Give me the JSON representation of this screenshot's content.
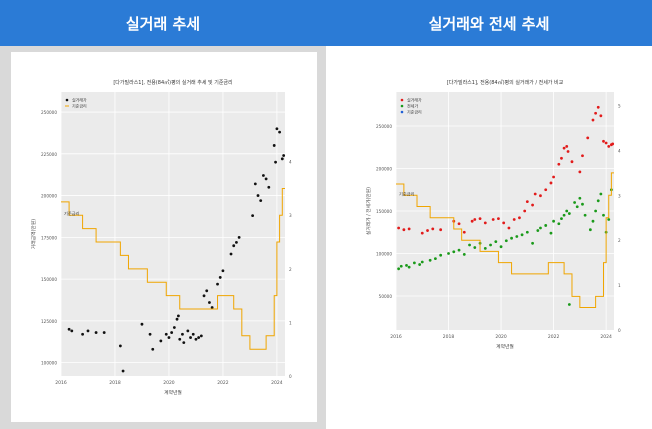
{
  "left_panel": {
    "header": "실거래 추세"
  },
  "right_panel": {
    "header": "실거래와 전세 추세"
  },
  "chart_data": [
    {
      "type": "scatter",
      "title": "[다가빌라스1], 전용(84㎡)평의 실거래 추세 및 기준금리",
      "xlabel": "계약년월",
      "ylabel": "거래금액(만원)",
      "y2label": "",
      "legend": [
        "실거래가",
        "기준금리"
      ],
      "legend_position": "top-left",
      "annotation": "기준금리",
      "colors": {
        "scatter": "#111111",
        "line": "#f0a500"
      },
      "x_ticks": [
        "2016",
        "2018",
        "2020",
        "2022",
        "2024"
      ],
      "y_ticks": [
        100000,
        125000,
        150000,
        175000,
        200000,
        225000,
        250000
      ],
      "y2_ticks": [
        0,
        1,
        2,
        3,
        4
      ],
      "xlim": [
        2016.0,
        2024.3
      ],
      "ylim": [
        92000,
        262000
      ],
      "y2lim": [
        0,
        5.3
      ],
      "series": [
        {
          "name": "실거래가",
          "points": [
            [
              2016.3,
              120000
            ],
            [
              2016.4,
              119000
            ],
            [
              2016.8,
              117000
            ],
            [
              2017.0,
              119000
            ],
            [
              2017.3,
              118000
            ],
            [
              2017.6,
              118000
            ],
            [
              2018.2,
              110000
            ],
            [
              2018.3,
              95000
            ],
            [
              2019.0,
              123000
            ],
            [
              2019.3,
              117000
            ],
            [
              2019.4,
              108000
            ],
            [
              2019.7,
              113000
            ],
            [
              2019.9,
              117000
            ],
            [
              2020.0,
              115000
            ],
            [
              2020.1,
              118000
            ],
            [
              2020.2,
              121000
            ],
            [
              2020.3,
              126000
            ],
            [
              2020.35,
              128000
            ],
            [
              2020.4,
              114000
            ],
            [
              2020.5,
              117000
            ],
            [
              2020.55,
              112000
            ],
            [
              2020.7,
              119000
            ],
            [
              2020.8,
              115000
            ],
            [
              2020.9,
              117000
            ],
            [
              2021.0,
              114000
            ],
            [
              2021.1,
              115000
            ],
            [
              2021.2,
              116000
            ],
            [
              2021.3,
              140000
            ],
            [
              2021.4,
              143000
            ],
            [
              2021.5,
              136000
            ],
            [
              2021.6,
              133000
            ],
            [
              2021.8,
              147000
            ],
            [
              2021.9,
              151000
            ],
            [
              2022.0,
              155000
            ],
            [
              2022.3,
              165000
            ],
            [
              2022.4,
              170000
            ],
            [
              2022.5,
              172000
            ],
            [
              2022.6,
              175000
            ],
            [
              2023.1,
              188000
            ],
            [
              2023.2,
              207000
            ],
            [
              2023.3,
              200000
            ],
            [
              2023.4,
              197000
            ],
            [
              2023.5,
              212000
            ],
            [
              2023.6,
              210000
            ],
            [
              2023.7,
              205000
            ],
            [
              2023.9,
              230000
            ],
            [
              2024.0,
              240000
            ],
            [
              2024.1,
              238000
            ],
            [
              2024.2,
              222000
            ],
            [
              2024.25,
              224000
            ],
            [
              2023.95,
              220000
            ]
          ]
        },
        {
          "name": "기준금리",
          "steps": [
            [
              2016.0,
              3.25
            ],
            [
              2016.3,
              3.0
            ],
            [
              2016.8,
              2.75
            ],
            [
              2017.3,
              2.5
            ],
            [
              2018.2,
              2.25
            ],
            [
              2018.5,
              2.0
            ],
            [
              2019.2,
              1.75
            ],
            [
              2019.9,
              1.5
            ],
            [
              2020.4,
              1.25
            ],
            [
              2020.6,
              1.25
            ],
            [
              2021.4,
              1.25
            ],
            [
              2021.8,
              1.5
            ],
            [
              2022.4,
              1.25
            ],
            [
              2022.7,
              0.75
            ],
            [
              2023.0,
              0.5
            ],
            [
              2023.6,
              0.75
            ],
            [
              2023.9,
              1.5
            ],
            [
              2024.0,
              2.5
            ],
            [
              2024.1,
              3.0
            ],
            [
              2024.2,
              3.5
            ],
            [
              2024.3,
              3.5
            ]
          ]
        }
      ]
    },
    {
      "type": "scatter",
      "title": "[다가빌라스1], 전용(84㎡)평의 실거래가 / 전세가 비교",
      "xlabel": "계약년월",
      "ylabel": "실거래가 / 전세가(만원)",
      "y2label": "",
      "legend": [
        "실거래가",
        "전세가",
        "기준금리"
      ],
      "legend_position": "top-left",
      "annotation": "기준금리",
      "colors": {
        "trade": "#e21b1b",
        "lease": "#1a9a1a",
        "line": "#f0a500",
        "rate_marker": "#1f5fd6"
      },
      "x_ticks": [
        "2016",
        "2018",
        "2020",
        "2022",
        "2024"
      ],
      "y_ticks": [
        50000,
        100000,
        150000,
        200000,
        250000
      ],
      "y2_ticks": [
        0,
        1,
        2,
        3,
        4,
        5
      ],
      "xlim": [
        2016.0,
        2024.3
      ],
      "ylim": [
        10000,
        290000
      ],
      "y2lim": [
        0,
        5.3
      ],
      "series": [
        {
          "name": "실거래가",
          "points": [
            [
              2016.1,
              130000
            ],
            [
              2016.3,
              128000
            ],
            [
              2016.5,
              129000
            ],
            [
              2017.0,
              124000
            ],
            [
              2017.2,
              127000
            ],
            [
              2017.4,
              129000
            ],
            [
              2017.7,
              128000
            ],
            [
              2018.2,
              138000
            ],
            [
              2018.4,
              135000
            ],
            [
              2018.6,
              125000
            ],
            [
              2018.9,
              138000
            ],
            [
              2019.0,
              140000
            ],
            [
              2019.2,
              141000
            ],
            [
              2019.4,
              136000
            ],
            [
              2019.7,
              140000
            ],
            [
              2019.9,
              141000
            ],
            [
              2020.1,
              136000
            ],
            [
              2020.3,
              130000
            ],
            [
              2020.5,
              140000
            ],
            [
              2020.7,
              142000
            ],
            [
              2020.9,
              150000
            ],
            [
              2021.0,
              161000
            ],
            [
              2021.2,
              157000
            ],
            [
              2021.3,
              170000
            ],
            [
              2021.5,
              168000
            ],
            [
              2021.7,
              175000
            ],
            [
              2021.9,
              183000
            ],
            [
              2022.0,
              190000
            ],
            [
              2022.2,
              205000
            ],
            [
              2022.3,
              212000
            ],
            [
              2022.4,
              224000
            ],
            [
              2022.5,
              226000
            ],
            [
              2022.55,
              220000
            ],
            [
              2022.7,
              208000
            ],
            [
              2023.0,
              196000
            ],
            [
              2023.1,
              215000
            ],
            [
              2023.3,
              236000
            ],
            [
              2023.5,
              257000
            ],
            [
              2023.6,
              265000
            ],
            [
              2023.7,
              272000
            ],
            [
              2023.8,
              262000
            ],
            [
              2023.9,
              232000
            ],
            [
              2024.0,
              230000
            ],
            [
              2024.1,
              226000
            ],
            [
              2024.2,
              228000
            ],
            [
              2024.25,
              229000
            ]
          ]
        },
        {
          "name": "전세가",
          "points": [
            [
              2016.1,
              82000
            ],
            [
              2016.2,
              85000
            ],
            [
              2016.4,
              86000
            ],
            [
              2016.5,
              84000
            ],
            [
              2016.7,
              89000
            ],
            [
              2016.9,
              87000
            ],
            [
              2017.0,
              90000
            ],
            [
              2017.3,
              92000
            ],
            [
              2017.5,
              94000
            ],
            [
              2017.7,
              98000
            ],
            [
              2018.0,
              100000
            ],
            [
              2018.2,
              102000
            ],
            [
              2018.4,
              104000
            ],
            [
              2018.6,
              99000
            ],
            [
              2018.8,
              110000
            ],
            [
              2019.0,
              107000
            ],
            [
              2019.2,
              112000
            ],
            [
              2019.4,
              106000
            ],
            [
              2019.6,
              110000
            ],
            [
              2019.8,
              114000
            ],
            [
              2020.0,
              108000
            ],
            [
              2020.2,
              115000
            ],
            [
              2020.4,
              118000
            ],
            [
              2020.6,
              120000
            ],
            [
              2020.8,
              122000
            ],
            [
              2021.0,
              125000
            ],
            [
              2021.2,
              112000
            ],
            [
              2021.4,
              127000
            ],
            [
              2021.5,
              130000
            ],
            [
              2021.7,
              133000
            ],
            [
              2021.9,
              124000
            ],
            [
              2022.0,
              138000
            ],
            [
              2022.2,
              135000
            ],
            [
              2022.3,
              141000
            ],
            [
              2022.4,
              145000
            ],
            [
              2022.5,
              150000
            ],
            [
              2022.6,
              147000
            ],
            [
              2022.8,
              160000
            ],
            [
              2022.9,
              155000
            ],
            [
              2023.0,
              165000
            ],
            [
              2023.1,
              158000
            ],
            [
              2023.2,
              145000
            ],
            [
              2023.4,
              128000
            ],
            [
              2023.5,
              138000
            ],
            [
              2023.6,
              150000
            ],
            [
              2023.7,
              162000
            ],
            [
              2023.8,
              170000
            ],
            [
              2023.9,
              145000
            ],
            [
              2024.0,
              125000
            ],
            [
              2024.1,
              140000
            ],
            [
              2024.2,
              175000
            ],
            [
              2022.6,
              40000
            ]
          ]
        },
        {
          "name": "기준금리",
          "steps": [
            [
              2016.0,
              3.25
            ],
            [
              2016.3,
              3.0
            ],
            [
              2016.8,
              2.75
            ],
            [
              2017.3,
              2.5
            ],
            [
              2018.2,
              2.25
            ],
            [
              2018.5,
              2.0
            ],
            [
              2019.2,
              1.75
            ],
            [
              2019.9,
              1.5
            ],
            [
              2020.4,
              1.25
            ],
            [
              2021.4,
              1.25
            ],
            [
              2021.8,
              1.5
            ],
            [
              2022.4,
              1.25
            ],
            [
              2022.7,
              0.75
            ],
            [
              2023.0,
              0.5
            ],
            [
              2023.6,
              0.75
            ],
            [
              2023.9,
              1.5
            ],
            [
              2024.0,
              2.5
            ],
            [
              2024.1,
              3.0
            ],
            [
              2024.2,
              3.5
            ],
            [
              2024.3,
              3.5
            ]
          ]
        }
      ]
    }
  ]
}
